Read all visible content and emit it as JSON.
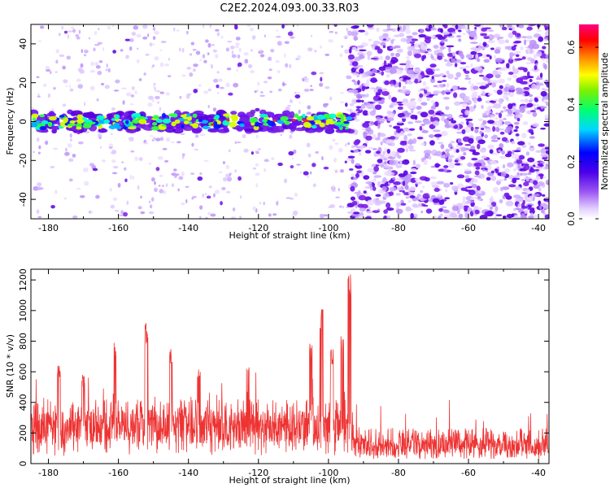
{
  "figure": {
    "title": "C2E2.2024.093.00.33.R03"
  },
  "chart_data": [
    {
      "type": "heatmap",
      "xlabel": "Height of straight line (km)",
      "ylabel": "Frequency (Hz)",
      "xlim": [
        -185,
        -37
      ],
      "ylim": [
        -50,
        50
      ],
      "xticks": [
        -180,
        -160,
        -140,
        -120,
        -100,
        -80,
        -60,
        -40
      ],
      "yticks": [
        -40,
        -20,
        0,
        20,
        40
      ],
      "colormap": "rainbow (white to purple, blue, cyan, green, yellow, red, magenta)",
      "signal_band": {
        "x_range": [
          -185,
          -94
        ],
        "center_frequency": 0,
        "half_width": 5
      },
      "noise_transition_x": -94,
      "colorbar": {
        "label": "Normalized spectral amplitude",
        "range": [
          0.0,
          0.68
        ],
        "ticks": [
          0.0,
          0.2,
          0.4,
          0.6
        ],
        "tick_labels": [
          "0.0",
          "0.2",
          "0.4",
          "0.6"
        ]
      }
    },
    {
      "type": "line",
      "xlabel": "Height of straight line (km)",
      "ylabel": "SNR (10 * v/v)",
      "xlim": [
        -185,
        -37
      ],
      "ylim": [
        0,
        1270
      ],
      "xticks": [
        -180,
        -160,
        -140,
        -120,
        -100,
        -80,
        -60,
        -40
      ],
      "yticks": [
        0,
        200,
        400,
        600,
        800,
        1000,
        1200
      ],
      "color": "#ee3333",
      "baseline_segments": [
        {
          "x_range": [
            -185,
            -93
          ],
          "typical": 240,
          "range": [
            50,
            420
          ]
        },
        {
          "x_range": [
            -93,
            -37
          ],
          "typical": 110,
          "range": [
            30,
            230
          ]
        }
      ],
      "notable_peaks": [
        {
          "x": -177,
          "y": 640
        },
        {
          "x": -170,
          "y": 590
        },
        {
          "x": -161,
          "y": 790
        },
        {
          "x": -152,
          "y": 920
        },
        {
          "x": -145,
          "y": 770
        },
        {
          "x": -137,
          "y": 630
        },
        {
          "x": -123,
          "y": 650
        },
        {
          "x": -105,
          "y": 810
        },
        {
          "x": -102,
          "y": 1010
        },
        {
          "x": -99,
          "y": 760
        },
        {
          "x": -96,
          "y": 840
        },
        {
          "x": -94,
          "y": 1260
        }
      ]
    }
  ]
}
